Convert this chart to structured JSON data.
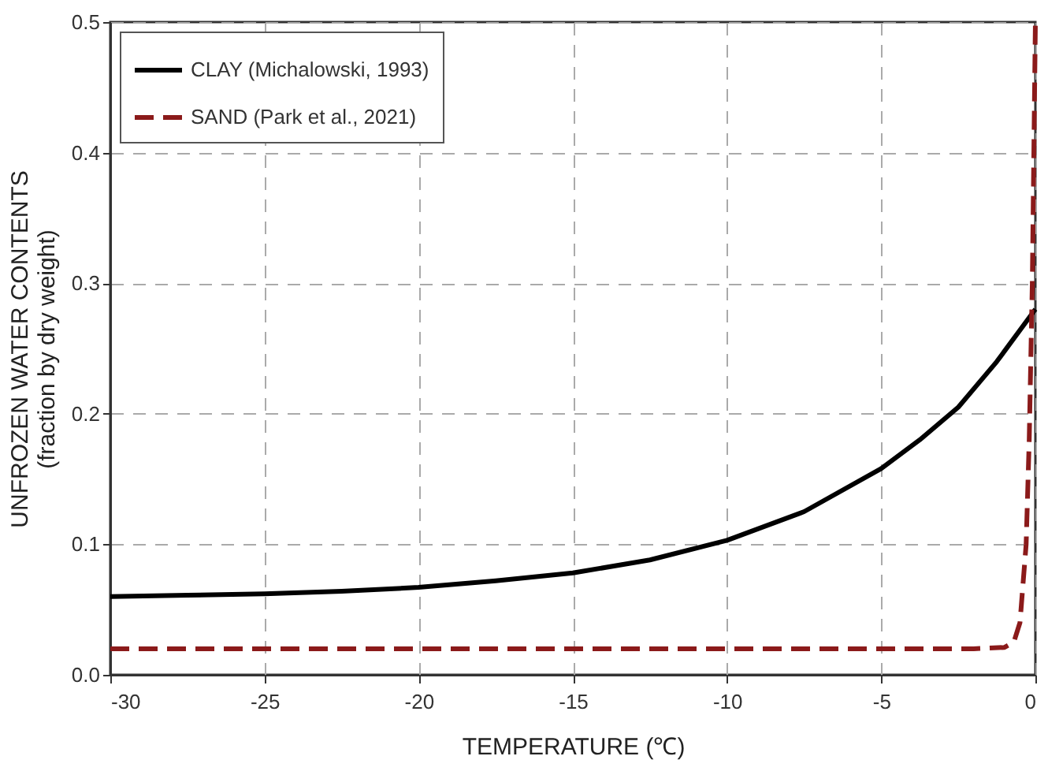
{
  "chart_data": {
    "type": "line",
    "xlabel": "TEMPERATURE (℃)",
    "ylabel": "UNFROZEN WATER CONTENTS\n(fraction by dry weight)",
    "xlim": [
      -30,
      0
    ],
    "xticks": [
      -30,
      -25,
      -20,
      -15,
      -10,
      -5,
      0
    ],
    "ylim": [
      0,
      0.5
    ],
    "yticks": [
      {
        "value": 0,
        "label": "0.0"
      },
      0.1,
      0.2,
      0.3,
      0.4,
      0.5
    ],
    "grid": true,
    "legend": "top left",
    "marker": "none",
    "series": [
      {
        "name": "CLAY (Michalowski, 1993)",
        "color": "#000000",
        "line_style": "solid",
        "x": [
          -30,
          -27.5,
          -25,
          -22.5,
          -20,
          -17.5,
          -15,
          -12.5,
          -10,
          -7.5,
          -5,
          -3.75,
          -2.5,
          -1.25,
          0
        ],
        "values": [
          0.06,
          0.061,
          0.062,
          0.064,
          0.067,
          0.072,
          0.078,
          0.088,
          0.103,
          0.125,
          0.158,
          0.18,
          0.205,
          0.24,
          0.28
        ]
      },
      {
        "name": "SAND (Park et al., 2021)",
        "color": "#8b1a1a",
        "line_style": "dashed",
        "x": [
          -30,
          -20,
          -10,
          -2,
          -1,
          -0.7,
          -0.5,
          -0.3,
          -0.2,
          -0.1,
          -0.05,
          0
        ],
        "values": [
          0.02,
          0.02,
          0.02,
          0.02,
          0.021,
          0.025,
          0.04,
          0.1,
          0.18,
          0.3,
          0.4,
          0.5
        ]
      }
    ]
  }
}
